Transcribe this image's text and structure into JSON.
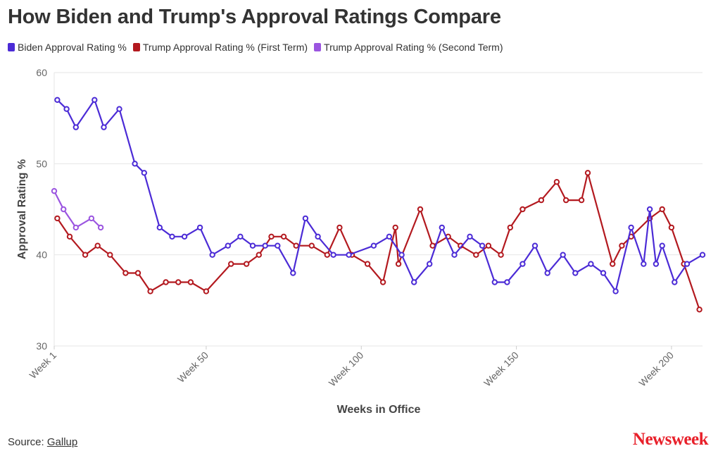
{
  "chart_data": {
    "type": "line",
    "title": "How Biden and Trump's Approval Ratings Compare",
    "xlabel": "Weeks in Office",
    "ylabel": "Approval Rating %",
    "xlim": [
      1,
      210
    ],
    "ylim": [
      30,
      60
    ],
    "yticks": [
      30,
      40,
      50,
      60
    ],
    "xticks": [
      {
        "value": 1,
        "label": "Week 1"
      },
      {
        "value": 50,
        "label": "Week 50"
      },
      {
        "value": 100,
        "label": "Week 100"
      },
      {
        "value": 150,
        "label": "Week 150"
      },
      {
        "value": 200,
        "label": "Week 200"
      }
    ],
    "grid": true,
    "legend_position": "top-left",
    "series": [
      {
        "name": "Biden Approval Rating %",
        "color": "#4b2bd6",
        "points": [
          [
            2,
            57
          ],
          [
            5,
            56
          ],
          [
            8,
            54
          ],
          [
            14,
            57
          ],
          [
            17,
            54
          ],
          [
            22,
            56
          ],
          [
            27,
            50
          ],
          [
            30,
            49
          ],
          [
            35,
            43
          ],
          [
            39,
            42
          ],
          [
            43,
            42
          ],
          [
            48,
            43
          ],
          [
            52,
            40
          ],
          [
            57,
            41
          ],
          [
            61,
            42
          ],
          [
            65,
            41
          ],
          [
            69,
            41
          ],
          [
            73,
            41
          ],
          [
            78,
            38
          ],
          [
            82,
            44
          ],
          [
            86,
            42
          ],
          [
            91,
            40
          ],
          [
            96,
            40
          ],
          [
            104,
            41
          ],
          [
            109,
            42
          ],
          [
            113,
            40
          ],
          [
            117,
            37
          ],
          [
            122,
            39
          ],
          [
            126,
            43
          ],
          [
            130,
            40
          ],
          [
            135,
            42
          ],
          [
            139,
            41
          ],
          [
            143,
            37
          ],
          [
            147,
            37
          ],
          [
            152,
            39
          ],
          [
            156,
            41
          ],
          [
            160,
            38
          ],
          [
            165,
            40
          ],
          [
            169,
            38
          ],
          [
            174,
            39
          ],
          [
            178,
            38
          ],
          [
            182,
            36
          ],
          [
            187,
            43
          ],
          [
            191,
            39
          ],
          [
            193,
            45
          ],
          [
            195,
            39
          ],
          [
            197,
            41
          ],
          [
            201,
            37
          ],
          [
            205,
            39
          ],
          [
            210,
            40
          ]
        ]
      },
      {
        "name": "Trump Approval Rating % (First Term)",
        "color": "#b3191f",
        "points": [
          [
            2,
            44
          ],
          [
            6,
            42
          ],
          [
            11,
            40
          ],
          [
            15,
            41
          ],
          [
            19,
            40
          ],
          [
            24,
            38
          ],
          [
            28,
            38
          ],
          [
            32,
            36
          ],
          [
            37,
            37
          ],
          [
            41,
            37
          ],
          [
            45,
            37
          ],
          [
            50,
            36
          ],
          [
            58,
            39
          ],
          [
            63,
            39
          ],
          [
            67,
            40
          ],
          [
            71,
            42
          ],
          [
            75,
            42
          ],
          [
            79,
            41
          ],
          [
            84,
            41
          ],
          [
            89,
            40
          ],
          [
            93,
            43
          ],
          [
            97,
            40
          ],
          [
            102,
            39
          ],
          [
            107,
            37
          ],
          [
            111,
            43
          ],
          [
            112,
            39
          ],
          [
            119,
            45
          ],
          [
            123,
            41
          ],
          [
            128,
            42
          ],
          [
            132,
            41
          ],
          [
            137,
            40
          ],
          [
            141,
            41
          ],
          [
            145,
            40
          ],
          [
            148,
            43
          ],
          [
            152,
            45
          ],
          [
            158,
            46
          ],
          [
            163,
            48
          ],
          [
            166,
            46
          ],
          [
            171,
            46
          ],
          [
            173,
            49
          ],
          [
            181,
            39
          ],
          [
            184,
            41
          ],
          [
            187,
            42
          ],
          [
            193,
            44
          ],
          [
            197,
            45
          ],
          [
            200,
            43
          ],
          [
            204,
            39
          ],
          [
            209,
            34
          ]
        ]
      },
      {
        "name": "Trump Approval Rating % (Second Term)",
        "color": "#9b55e0",
        "points": [
          [
            1,
            47
          ],
          [
            4,
            45
          ],
          [
            8,
            43
          ],
          [
            13,
            44
          ],
          [
            16,
            43
          ]
        ]
      }
    ]
  },
  "source": {
    "label": "Source:",
    "link_text": "Gallup"
  },
  "brand": {
    "logo_text": "Newsweek",
    "color": "#e8202a"
  }
}
